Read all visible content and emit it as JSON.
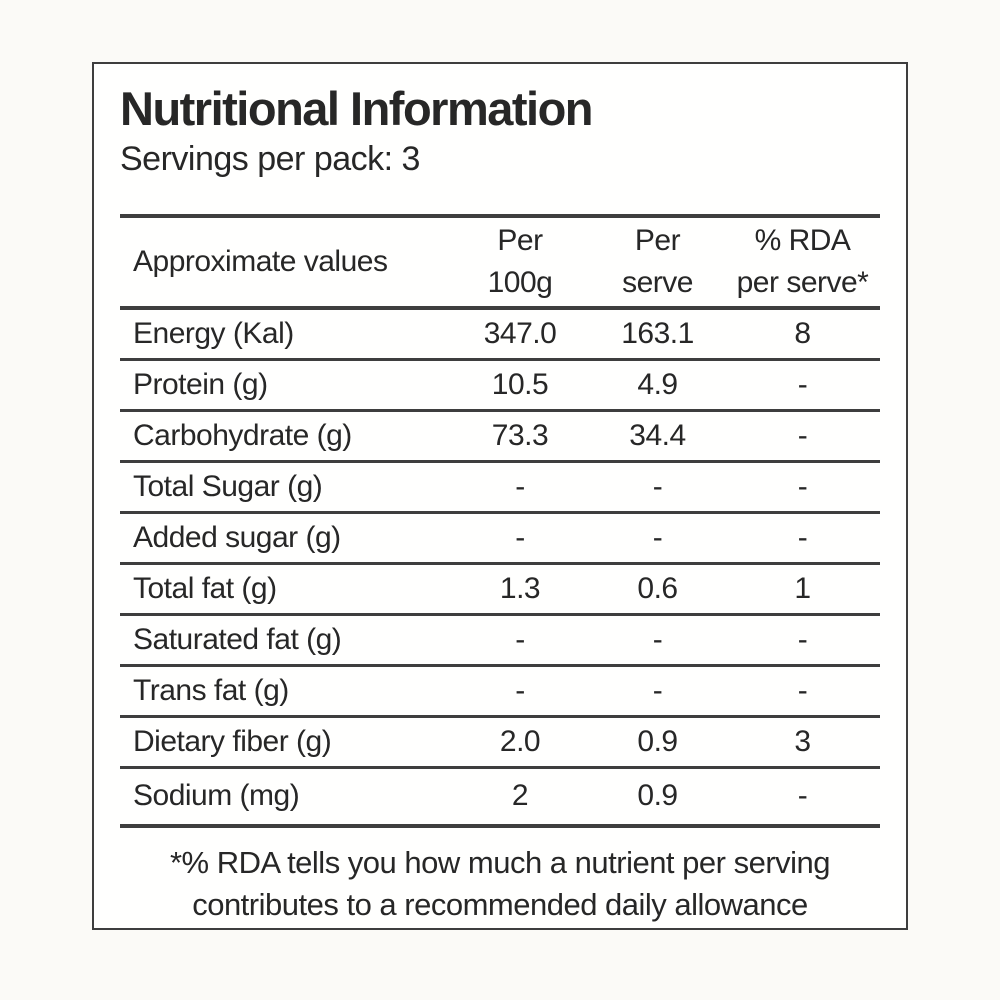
{
  "title": "Nutritional Information",
  "subtitle": "Servings per pack: 3",
  "table": {
    "header": {
      "label": "Approximate values",
      "per_100g": [
        "Per",
        "100g"
      ],
      "per_serve": [
        "Per",
        "serve"
      ],
      "rda": [
        "% RDA",
        "per serve*"
      ]
    },
    "rows": [
      {
        "label": "Energy (Kal)",
        "values": [
          "347.0",
          "163.1",
          "8"
        ]
      },
      {
        "label": "Protein (g)",
        "values": [
          "10.5",
          "4.9",
          "-"
        ]
      },
      {
        "label": "Carbohydrate (g)",
        "values": [
          "73.3",
          "34.4",
          "-"
        ]
      },
      {
        "label": "Total Sugar (g)",
        "values": [
          "-",
          "-",
          "-"
        ]
      },
      {
        "label": "Added sugar (g)",
        "values": [
          "-",
          "-",
          "-"
        ]
      },
      {
        "label": "Total fat (g)",
        "values": [
          "1.3",
          "0.6",
          "1"
        ]
      },
      {
        "label": "Saturated fat (g)",
        "values": [
          "-",
          "-",
          "-"
        ]
      },
      {
        "label": "Trans fat (g)",
        "values": [
          "-",
          "-",
          "-"
        ]
      },
      {
        "label": "Dietary fiber (g)",
        "values": [
          "2.0",
          "0.9",
          "3"
        ]
      },
      {
        "label": "Sodium (mg)",
        "values": [
          "2",
          "0.9",
          "-"
        ]
      }
    ]
  },
  "footnote": {
    "line1": "*% RDA tells you how much a nutrient per serving",
    "line2": "contributes to a recommended daily allowance"
  },
  "colors": {
    "ink": "#272727",
    "line": "#3e3e3e",
    "box_bg": "#fffffe",
    "page_bg": "#fbfaf7"
  }
}
